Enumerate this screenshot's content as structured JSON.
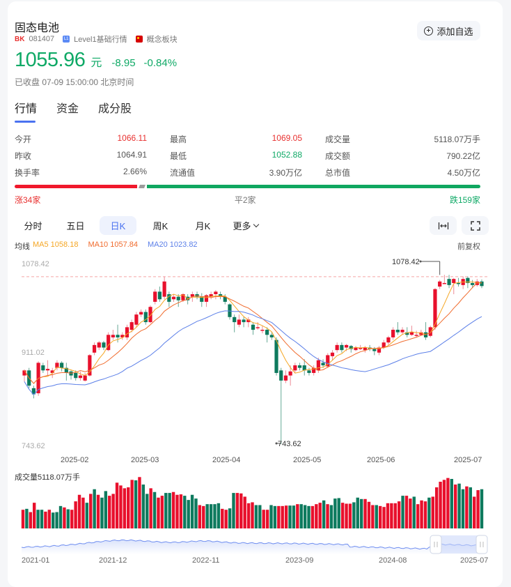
{
  "header": {
    "title": "固态电池",
    "bk_badge": "BK",
    "code": "081407",
    "level_icon": "L1",
    "level_label": "Level1基础行情",
    "category_label": "概念板块",
    "add_watchlist_label": "添加自选"
  },
  "quote": {
    "price": "1055.96",
    "unit": "元",
    "change": "-8.95",
    "change_pct": "-0.84%",
    "status": "已收盘 07-09 15:00:00 北京时间"
  },
  "tabs": [
    {
      "label": "行情",
      "active": true
    },
    {
      "label": "资金",
      "active": false
    },
    {
      "label": "成分股",
      "active": false
    }
  ],
  "stats": [
    [
      {
        "label": "今开",
        "value": "1066.11",
        "color": "up"
      },
      {
        "label": "最高",
        "value": "1069.05",
        "color": "up"
      },
      {
        "label": "成交量",
        "value": "5118.07万手",
        "color": ""
      }
    ],
    [
      {
        "label": "昨收",
        "value": "1064.91",
        "color": ""
      },
      {
        "label": "最低",
        "value": "1052.88",
        "color": "down"
      },
      {
        "label": "成交额",
        "value": "790.22亿",
        "color": ""
      }
    ],
    [
      {
        "label": "换手率",
        "value": "2.66%",
        "color": ""
      },
      {
        "label": "流通值",
        "value": "3.90万亿",
        "color": ""
      },
      {
        "label": "总市值",
        "value": "4.50万亿",
        "color": ""
      }
    ]
  ],
  "breadth": {
    "up_label": "涨34家",
    "flat_label": "平2家",
    "down_label": "跌159家",
    "up": 34,
    "flat": 2,
    "down": 159
  },
  "kline_tabs": [
    {
      "label": "分时",
      "active": false
    },
    {
      "label": "五日",
      "active": false
    },
    {
      "label": "日K",
      "active": true
    },
    {
      "label": "周K",
      "active": false
    },
    {
      "label": "月K",
      "active": false
    },
    {
      "label": "更多",
      "active": false
    }
  ],
  "chart_controls": {
    "fit_icon": "fit-width-icon",
    "fullscreen_icon": "fullscreen-icon",
    "adjust_label": "前复权"
  },
  "ma_legend": {
    "label": "均线",
    "ma5": "MA5 1058.18",
    "ma10": "MA10 1057.84",
    "ma20": "MA20 1023.82"
  },
  "colors": {
    "up": "#e8102c",
    "down": "#0e7a5e",
    "ma5": "#f5a623",
    "ma10": "#f06b2d",
    "ma20": "#5b7fe8",
    "accent": "#4a72f0"
  },
  "chart_data": {
    "type": "candlestick",
    "y_axis_labels": [
      "1078.42",
      "911.02",
      "743.62"
    ],
    "high_marker": "1078.42",
    "low_marker": "743.62",
    "x_labels": [
      "2025-02",
      "2025-03",
      "2025-04",
      "2025-05",
      "2025-06",
      "2025-07"
    ],
    "candles": [
      [
        880,
        890,
        868,
        892
      ],
      [
        890,
        860,
        855,
        895
      ],
      [
        855,
        843,
        835,
        860
      ],
      [
        845,
        905,
        840,
        908
      ],
      [
        900,
        890,
        885,
        905
      ],
      [
        890,
        893,
        880,
        910
      ],
      [
        885,
        890,
        875,
        895
      ],
      [
        895,
        905,
        890,
        910
      ],
      [
        905,
        895,
        888,
        908
      ],
      [
        895,
        885,
        870,
        905
      ],
      [
        888,
        880,
        872,
        890
      ],
      [
        885,
        875,
        870,
        890
      ],
      [
        875,
        880,
        870,
        888
      ],
      [
        870,
        880,
        868,
        885
      ],
      [
        880,
        920,
        878,
        922
      ],
      [
        925,
        940,
        920,
        945
      ],
      [
        935,
        945,
        930,
        948
      ],
      [
        945,
        935,
        930,
        948
      ],
      [
        930,
        960,
        928,
        965
      ],
      [
        955,
        960,
        950,
        970
      ],
      [
        960,
        955,
        945,
        980
      ],
      [
        955,
        960,
        950,
        965
      ],
      [
        955,
        975,
        950,
        980
      ],
      [
        970,
        985,
        965,
        990
      ],
      [
        980,
        1000,
        975,
        1005
      ],
      [
        1000,
        1005,
        995,
        1010
      ],
      [
        1005,
        985,
        980,
        1010
      ],
      [
        985,
        1015,
        983,
        1018
      ],
      [
        1025,
        1045,
        1020,
        1050
      ],
      [
        1045,
        1030,
        1025,
        1055
      ],
      [
        1035,
        1065,
        1030,
        1075
      ],
      [
        1040,
        1025,
        1015,
        1045
      ],
      [
        1030,
        1035,
        1025,
        1040
      ],
      [
        1035,
        1028,
        1015,
        1040
      ],
      [
        1028,
        1040,
        1025,
        1042
      ],
      [
        1035,
        1028,
        1020,
        1040
      ],
      [
        1035,
        1040,
        1025,
        1045
      ],
      [
        1040,
        1035,
        1030,
        1045
      ],
      [
        1035,
        1025,
        1015,
        1042
      ],
      [
        1025,
        1038,
        1015,
        1040
      ],
      [
        1035,
        1040,
        1030,
        1045
      ],
      [
        1040,
        1045,
        1030,
        1048
      ],
      [
        1040,
        1035,
        1030,
        1045
      ],
      [
        1035,
        1025,
        1020,
        1040
      ],
      [
        1020,
        995,
        990,
        1022
      ],
      [
        995,
        985,
        965,
        1000
      ],
      [
        980,
        990,
        975,
        1000
      ],
      [
        990,
        985,
        975,
        995
      ],
      [
        985,
        990,
        975,
        995
      ],
      [
        980,
        970,
        960,
        985
      ],
      [
        975,
        975,
        970,
        985
      ],
      [
        970,
        970,
        963,
        978
      ],
      [
        970,
        960,
        945,
        975
      ],
      [
        960,
        955,
        950,
        965
      ],
      [
        950,
        885,
        880,
        955
      ],
      [
        890,
        870,
        745,
        895
      ],
      [
        870,
        880,
        865,
        890
      ],
      [
        880,
        888,
        860,
        900
      ],
      [
        890,
        900,
        885,
        905
      ],
      [
        900,
        895,
        890,
        905
      ],
      [
        900,
        890,
        880,
        912
      ],
      [
        890,
        885,
        880,
        895
      ],
      [
        885,
        895,
        880,
        900
      ],
      [
        890,
        910,
        885,
        915
      ],
      [
        905,
        900,
        895,
        912
      ],
      [
        898,
        920,
        895,
        924
      ],
      [
        918,
        925,
        910,
        930
      ],
      [
        930,
        940,
        925,
        945
      ],
      [
        940,
        930,
        925,
        945
      ],
      [
        935,
        940,
        928,
        942
      ],
      [
        938,
        932,
        925,
        940
      ],
      [
        930,
        935,
        928,
        938
      ],
      [
        932,
        935,
        930,
        940
      ],
      [
        930,
        935,
        925,
        938
      ],
      [
        935,
        932,
        928,
        940
      ],
      [
        932,
        928,
        920,
        936
      ],
      [
        925,
        935,
        920,
        938
      ],
      [
        935,
        945,
        932,
        950
      ],
      [
        945,
        955,
        940,
        958
      ],
      [
        955,
        970,
        950,
        975
      ],
      [
        970,
        965,
        960,
        985
      ],
      [
        965,
        970,
        960,
        975
      ],
      [
        965,
        960,
        955,
        975
      ],
      [
        960,
        965,
        958,
        978
      ],
      [
        960,
        960,
        955,
        968
      ],
      [
        960,
        965,
        958,
        970
      ],
      [
        965,
        955,
        950,
        985
      ],
      [
        958,
        975,
        955,
        978
      ],
      [
        975,
        1050,
        970,
        1052
      ],
      [
        1055,
        1065,
        1050,
        1068
      ],
      [
        1062,
        1062,
        1060,
        1078
      ],
      [
        1070,
        1058,
        1052,
        1078
      ],
      [
        1062,
        1070,
        1040,
        1072
      ],
      [
        1062,
        1060,
        1055,
        1072
      ],
      [
        1058,
        1070,
        1050,
        1075
      ],
      [
        1072,
        1062,
        1052,
        1075
      ],
      [
        1062,
        1058,
        1052,
        1068
      ],
      [
        1058,
        1065,
        1055,
        1070
      ],
      [
        1065,
        1056,
        1052,
        1069
      ]
    ]
  },
  "volume": {
    "title": "成交量5118.07万手",
    "bars": [
      [
        40,
        "u"
      ],
      [
        42,
        "d"
      ],
      [
        35,
        "u"
      ],
      [
        55,
        "u"
      ],
      [
        40,
        "d"
      ],
      [
        40,
        "d"
      ],
      [
        36,
        "u"
      ],
      [
        40,
        "u"
      ],
      [
        34,
        "d"
      ],
      [
        35,
        "d"
      ],
      [
        48,
        "d"
      ],
      [
        45,
        "u"
      ],
      [
        41,
        "d"
      ],
      [
        40,
        "u"
      ],
      [
        58,
        "u"
      ],
      [
        72,
        "u"
      ],
      [
        66,
        "u"
      ],
      [
        55,
        "d"
      ],
      [
        74,
        "u"
      ],
      [
        84,
        "d"
      ],
      [
        72,
        "u"
      ],
      [
        66,
        "d"
      ],
      [
        80,
        "d"
      ],
      [
        70,
        "u"
      ],
      [
        74,
        "u"
      ],
      [
        98,
        "u"
      ],
      [
        92,
        "u"
      ],
      [
        86,
        "u"
      ],
      [
        88,
        "u"
      ],
      [
        104,
        "u"
      ],
      [
        103,
        "d"
      ],
      [
        110,
        "u"
      ],
      [
        94,
        "d"
      ],
      [
        74,
        "d"
      ],
      [
        86,
        "u"
      ],
      [
        78,
        "d"
      ],
      [
        66,
        "u"
      ],
      [
        70,
        "u"
      ],
      [
        76,
        "d"
      ],
      [
        76,
        "d"
      ],
      [
        78,
        "u"
      ],
      [
        72,
        "u"
      ],
      [
        73,
        "u"
      ],
      [
        70,
        "d"
      ],
      [
        61,
        "d"
      ],
      [
        72,
        "d"
      ],
      [
        64,
        "d"
      ],
      [
        50,
        "u"
      ],
      [
        48,
        "u"
      ],
      [
        52,
        "d"
      ],
      [
        52,
        "d"
      ],
      [
        52,
        "d"
      ],
      [
        54,
        "d"
      ],
      [
        42,
        "u"
      ],
      [
        40,
        "u"
      ],
      [
        43,
        "d"
      ],
      [
        76,
        "d"
      ],
      [
        76,
        "u"
      ],
      [
        75,
        "u"
      ],
      [
        68,
        "u"
      ],
      [
        54,
        "u"
      ],
      [
        56,
        "u"
      ],
      [
        50,
        "d"
      ],
      [
        50,
        "d"
      ],
      [
        40,
        "u"
      ],
      [
        40,
        "u"
      ],
      [
        50,
        "d"
      ],
      [
        48,
        "d"
      ],
      [
        48,
        "u"
      ],
      [
        48,
        "u"
      ],
      [
        49,
        "u"
      ],
      [
        49,
        "d"
      ],
      [
        49,
        "d"
      ],
      [
        52,
        "u"
      ],
      [
        52,
        "d"
      ],
      [
        50,
        "d"
      ],
      [
        48,
        "d"
      ],
      [
        48,
        "u"
      ],
      [
        52,
        "u"
      ],
      [
        55,
        "u"
      ],
      [
        60,
        "d"
      ],
      [
        52,
        "u"
      ],
      [
        50,
        "d"
      ],
      [
        64,
        "d"
      ],
      [
        65,
        "d"
      ],
      [
        55,
        "u"
      ],
      [
        53,
        "u"
      ],
      [
        53,
        "u"
      ],
      [
        56,
        "d"
      ],
      [
        66,
        "d"
      ],
      [
        63,
        "d"
      ],
      [
        63,
        "u"
      ],
      [
        57,
        "u"
      ],
      [
        50,
        "u"
      ],
      [
        50,
        "d"
      ],
      [
        48,
        "u"
      ],
      [
        46,
        "u"
      ],
      [
        54,
        "u"
      ],
      [
        54,
        "u"
      ],
      [
        54,
        "u"
      ],
      [
        58,
        "u"
      ],
      [
        70,
        "d"
      ],
      [
        70,
        "u"
      ],
      [
        64,
        "u"
      ],
      [
        68,
        "d"
      ],
      [
        52,
        "u"
      ],
      [
        60,
        "u"
      ],
      [
        58,
        "u"
      ],
      [
        66,
        "d"
      ],
      [
        68,
        "u"
      ],
      [
        88,
        "u"
      ],
      [
        100,
        "u"
      ],
      [
        104,
        "u"
      ],
      [
        108,
        "u"
      ],
      [
        106,
        "d"
      ],
      [
        94,
        "u"
      ],
      [
        96,
        "d"
      ],
      [
        84,
        "d"
      ],
      [
        90,
        "u"
      ],
      [
        88,
        "d"
      ],
      [
        68,
        "u"
      ],
      [
        82,
        "u"
      ],
      [
        84,
        "d"
      ]
    ]
  },
  "navigator": {
    "x_labels": [
      "2021-01",
      "2021-12",
      "2022-11",
      "2023-09",
      "2024-08",
      "2025-07"
    ]
  }
}
